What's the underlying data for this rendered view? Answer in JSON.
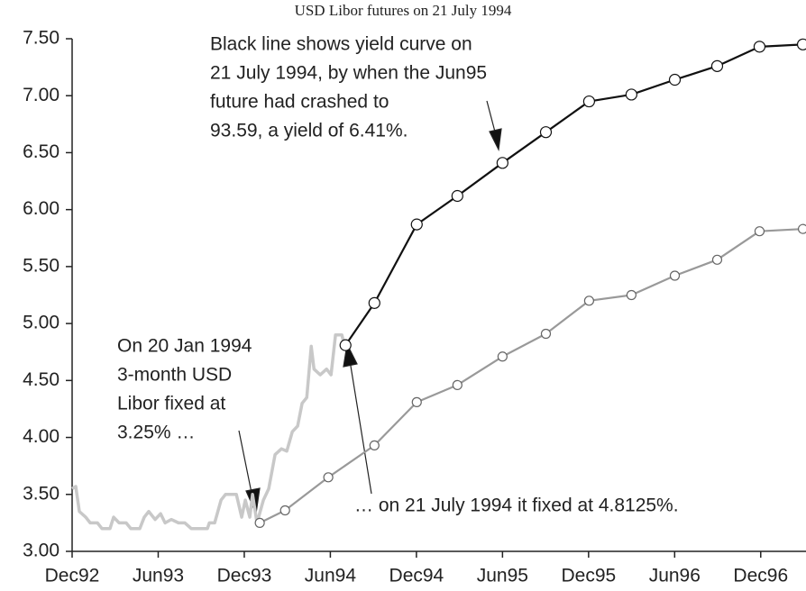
{
  "chart_data": {
    "type": "line",
    "title": "USD Libor futures on 21 July 1994",
    "xlim": [
      1992.917,
      1997.18
    ],
    "xticks": [
      {
        "value": 1992.917,
        "label": "Dec92"
      },
      {
        "value": 1993.417,
        "label": "Jun93"
      },
      {
        "value": 1993.917,
        "label": "Dec93"
      },
      {
        "value": 1994.417,
        "label": "Jun94"
      },
      {
        "value": 1994.917,
        "label": "Dec94"
      },
      {
        "value": 1995.417,
        "label": "Jun95"
      },
      {
        "value": 1995.917,
        "label": "Dec95"
      },
      {
        "value": 1996.417,
        "label": "Jun96"
      },
      {
        "value": 1996.917,
        "label": "Dec96"
      }
    ],
    "ylim": [
      3.0,
      7.5
    ],
    "yticks": [
      {
        "value": 3.0,
        "label": "3.00"
      },
      {
        "value": 3.5,
        "label": "3.50"
      },
      {
        "value": 4.0,
        "label": "4.00"
      },
      {
        "value": 4.5,
        "label": "4.50"
      },
      {
        "value": 5.0,
        "label": "5.00"
      },
      {
        "value": 5.5,
        "label": "5.50"
      },
      {
        "value": 6.0,
        "label": "6.00"
      },
      {
        "value": 6.5,
        "label": "6.50"
      },
      {
        "value": 7.0,
        "label": "7.00"
      },
      {
        "value": 7.5,
        "label": "7.50"
      }
    ],
    "series": [
      {
        "color": "#c8c8c8",
        "marker": false,
        "x": [
          1992.917,
          1992.938,
          1992.959,
          1992.996,
          1993.022,
          1993.064,
          1993.09,
          1993.137,
          1993.158,
          1993.19,
          1993.231,
          1993.258,
          1993.31,
          1993.336,
          1993.362,
          1993.399,
          1993.431,
          1993.457,
          1993.493,
          1993.535,
          1993.572,
          1993.609,
          1993.703,
          1993.714,
          1993.745,
          1993.782,
          1993.808,
          1993.871,
          1993.902,
          1993.923,
          1993.949,
          1993.965,
          1993.991,
          1994.028,
          1994.059,
          1994.096,
          1994.133,
          1994.164,
          1994.196,
          1994.227,
          1994.253,
          1994.28,
          1994.306,
          1994.322,
          1994.358,
          1994.395,
          1994.421,
          1994.447,
          1994.484,
          1994.5
        ],
        "values": [
          3.55,
          3.57,
          3.35,
          3.3,
          3.25,
          3.25,
          3.2,
          3.2,
          3.3,
          3.25,
          3.25,
          3.2,
          3.2,
          3.3,
          3.35,
          3.28,
          3.33,
          3.25,
          3.28,
          3.25,
          3.25,
          3.2,
          3.2,
          3.25,
          3.25,
          3.45,
          3.5,
          3.5,
          3.3,
          3.45,
          3.3,
          3.5,
          3.25,
          3.45,
          3.55,
          3.85,
          3.9,
          3.88,
          4.05,
          4.1,
          4.3,
          4.35,
          4.8,
          4.6,
          4.55,
          4.6,
          4.55,
          4.9,
          4.9,
          4.8
        ]
      },
      {
        "color": "#999999",
        "marker": true,
        "x": [
          1994.007,
          1994.154,
          1994.405,
          1994.673,
          1994.919,
          1995.155,
          1995.417,
          1995.669,
          1995.92,
          1996.166,
          1996.418,
          1996.664,
          1996.91,
          1997.162
        ],
        "values": [
          3.25,
          3.36,
          3.65,
          3.93,
          4.31,
          4.46,
          4.71,
          4.91,
          5.2,
          5.25,
          5.42,
          5.56,
          5.81,
          5.83
        ]
      },
      {
        "color": "#111111",
        "marker": true,
        "x": [
          1994.505,
          1994.673,
          1994.919,
          1995.155,
          1995.417,
          1995.669,
          1995.92,
          1996.166,
          1996.418,
          1996.664,
          1996.91,
          1997.162
        ],
        "values": [
          4.81,
          5.18,
          5.87,
          6.12,
          6.41,
          6.68,
          6.95,
          7.01,
          7.14,
          7.26,
          7.43,
          7.45
        ]
      }
    ],
    "annotations": [
      {
        "lines": [
          "Black line shows yield curve on",
          "21 July 1994, by when the Jun95",
          "future had crashed to",
          "93.59, a yield of 6.41%."
        ]
      },
      {
        "lines": [
          "On 20 Jan 1994",
          "3-month USD",
          "Libor fixed at",
          "3.25% …"
        ]
      },
      {
        "lines": [
          "… on 21 July 1994 it fixed at 4.8125%."
        ]
      }
    ]
  }
}
